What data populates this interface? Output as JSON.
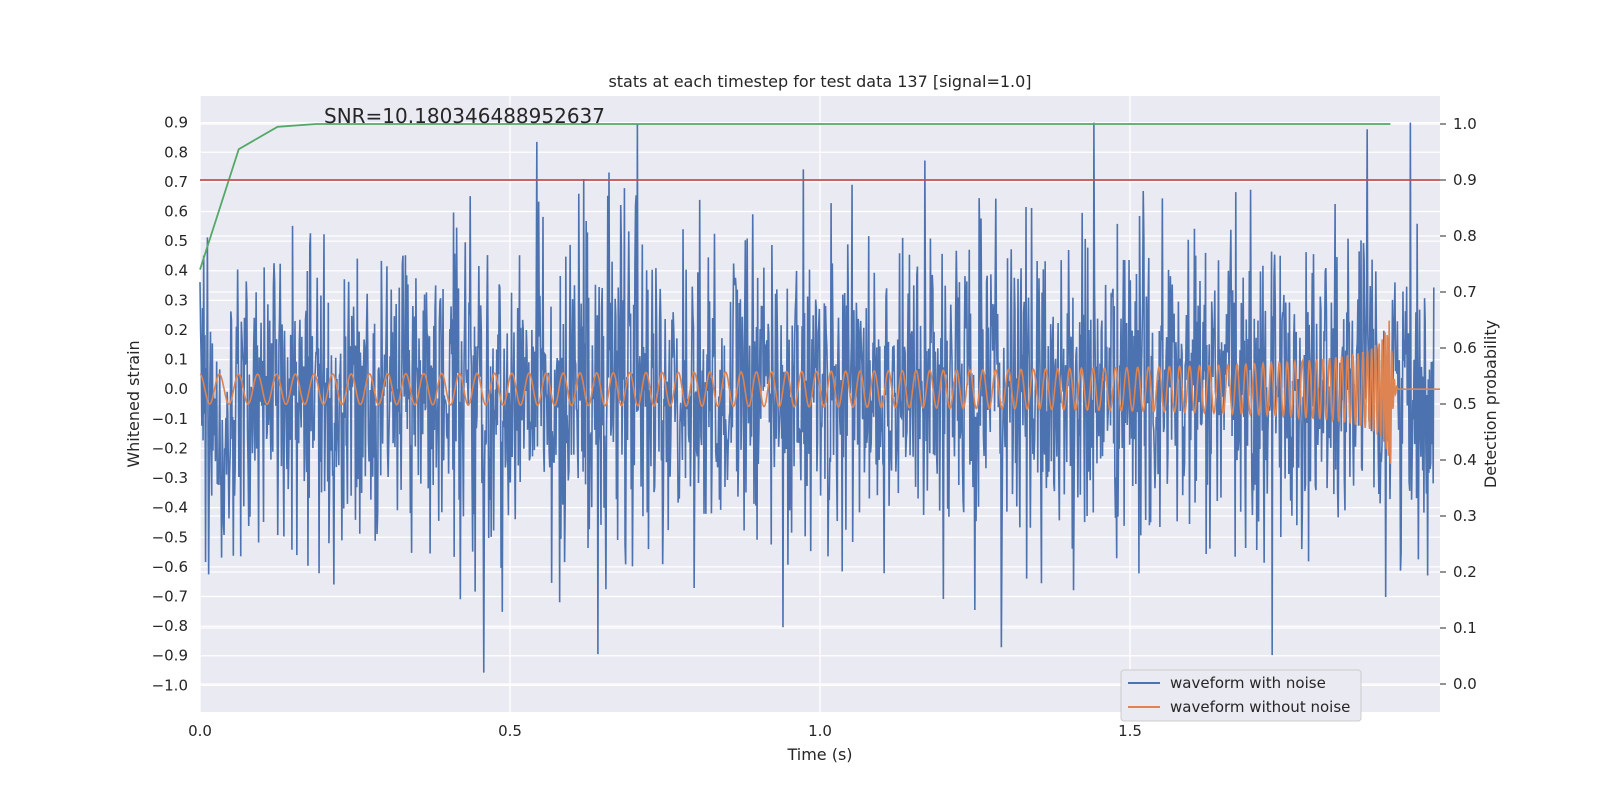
{
  "chart_data": {
    "type": "line",
    "title": "stats at each timestep for test data 137 [signal=1.0]",
    "annotation": "SNR=10.180346488952637",
    "xlabel": "Time (s)",
    "ylabel": "Whitened strain",
    "y2label": "Detection probability",
    "xlim": [
      0.0,
      2.0
    ],
    "ylim": [
      -1.09,
      0.99
    ],
    "y2lim": [
      -0.05,
      1.05
    ],
    "x_ticks": [
      "0.0",
      "0.5",
      "1.0",
      "1.5"
    ],
    "x_tick_values": [
      0.0,
      0.5,
      1.0,
      1.5
    ],
    "y_ticks": [
      "0.9",
      "0.8",
      "0.7",
      "0.6",
      "0.5",
      "0.4",
      "0.3",
      "0.2",
      "0.1",
      "0.0",
      "−0.1",
      "−0.2",
      "−0.3",
      "−0.4",
      "−0.5",
      "−0.6",
      "−0.7",
      "−0.8",
      "−0.9",
      "−1.0"
    ],
    "y_tick_values": [
      0.9,
      0.8,
      0.7,
      0.6,
      0.5,
      0.4,
      0.3,
      0.2,
      0.1,
      0.0,
      -0.1,
      -0.2,
      -0.3,
      -0.4,
      -0.5,
      -0.6,
      -0.7,
      -0.8,
      -0.9,
      -1.0
    ],
    "y2_ticks": [
      "1.0",
      "0.9",
      "0.8",
      "0.7",
      "0.6",
      "0.5",
      "0.4",
      "0.3",
      "0.2",
      "0.1",
      "0.0"
    ],
    "y2_tick_values": [
      1.0,
      0.9,
      0.8,
      0.7,
      0.6,
      0.5,
      0.4,
      0.3,
      0.2,
      0.1,
      0.0
    ],
    "grid": true,
    "legend_position": "lower-right",
    "colors": {
      "noisy": "#4c72b0",
      "clean": "#dd8452",
      "probability": "#55a868",
      "threshold": "#c44e52",
      "background": "#eaeaf2",
      "grid": "#ffffff"
    },
    "series": [
      {
        "name": "waveform with noise",
        "kind": "noisy-waveform",
        "t_start": 0.0,
        "t_end": 1.99,
        "amplitude_range": [
          -1.0,
          0.9
        ],
        "typical_amplitude": 0.3
      },
      {
        "name": "waveform without noise",
        "kind": "chirp",
        "t_start": 0.0,
        "t_merger": 1.92,
        "t_end": 2.0,
        "initial_amplitude": 0.05,
        "peak_amplitude": 0.3,
        "initial_frequency_hz": 32
      }
    ],
    "detection_probability": {
      "x": [
        0.0,
        0.0625,
        0.125,
        0.1875,
        0.25,
        0.5,
        0.75,
        1.0,
        1.25,
        1.5,
        1.75,
        1.92
      ],
      "y": [
        0.74,
        0.955,
        0.995,
        1.0,
        1.0,
        1.0,
        1.0,
        1.0,
        1.0,
        1.0,
        1.0,
        1.0
      ]
    },
    "threshold": {
      "value": 0.9,
      "axis": "right"
    }
  }
}
